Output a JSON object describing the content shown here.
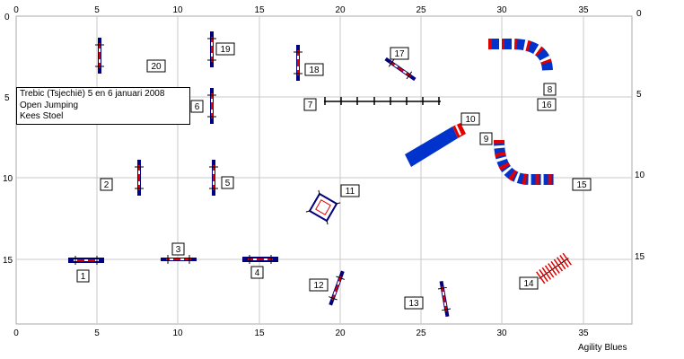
{
  "info": {
    "line1": "Trebic (Tsjechië) 5 en 6 januari 2008",
    "line2": "Open Jumping",
    "line3": "Kees Stoel"
  },
  "credit": "Agility Blues",
  "axes": {
    "x_ticks": [
      "0",
      "5",
      "10",
      "15",
      "20",
      "25",
      "30",
      "35"
    ],
    "y_ticks": [
      "0",
      "5",
      "10",
      "15"
    ],
    "x_range": [
      0,
      38
    ],
    "y_range": [
      0,
      19
    ]
  },
  "course": {
    "obstacle_numbers": [
      "1",
      "2",
      "3",
      "4",
      "5",
      "6",
      "7",
      "8",
      "9",
      "10",
      "11",
      "12",
      "13",
      "14",
      "15",
      "16",
      "17",
      "18",
      "19",
      "20"
    ]
  },
  "colors": {
    "jump_pole": "#000080",
    "jump_bar_red": "#e00000",
    "tunnel_blue": "#0033cc",
    "tunnel_red": "#e00000",
    "grid": "#c8c8c8"
  }
}
